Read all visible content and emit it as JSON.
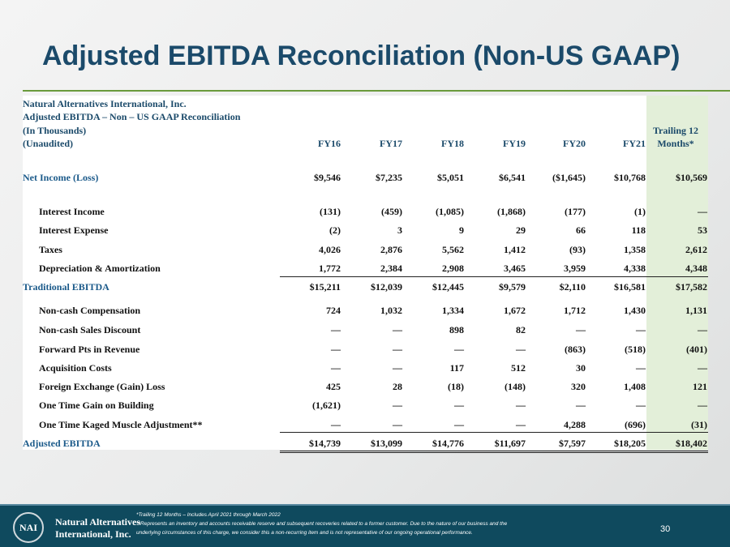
{
  "header": {
    "title": "Adjusted EBITDA Reconciliation (Non-US GAAP)"
  },
  "table": {
    "caption": [
      "Natural Alternatives International, Inc.",
      "Adjusted EBITDA – Non – US GAAP Reconciliation",
      "(In Thousands)",
      "(Unaudited)"
    ],
    "columns": [
      "FY16",
      "FY17",
      "FY18",
      "FY19",
      "FY20",
      "FY21",
      [
        "Trailing 12",
        "Months*"
      ]
    ],
    "rows": [
      {
        "label": "Net Income (Loss)",
        "values": [
          "$9,546",
          "$7,235",
          "$5,051",
          "$6,541",
          "($1,645)",
          "$10,768",
          "$10,569"
        ]
      },
      {
        "label": "Interest Income",
        "values": [
          "(131)",
          "(459)",
          "(1,085)",
          "(1,868)",
          "(177)",
          "(1)",
          "—"
        ]
      },
      {
        "label": "Interest Expense",
        "values": [
          "(2)",
          "3",
          "9",
          "29",
          "66",
          "118",
          "53"
        ]
      },
      {
        "label": "Taxes",
        "values": [
          "4,026",
          "2,876",
          "5,562",
          "1,412",
          "(93)",
          "1,358",
          "2,612"
        ]
      },
      {
        "label": "Depreciation & Amortization",
        "values": [
          "1,772",
          "2,384",
          "2,908",
          "3,465",
          "3,959",
          "4,338",
          "4,348"
        ]
      },
      {
        "label": "Traditional EBITDA",
        "values": [
          "$15,211",
          "$12,039",
          "$12,445",
          "$9,579",
          "$2,110",
          "$16,581",
          "$17,582"
        ]
      },
      {
        "label": "Non-cash Compensation",
        "values": [
          "724",
          "1,032",
          "1,334",
          "1,672",
          "1,712",
          "1,430",
          "1,131"
        ]
      },
      {
        "label": "Non-cash Sales Discount",
        "values": [
          "—",
          "—",
          "898",
          "82",
          "—",
          "—",
          "—"
        ]
      },
      {
        "label": "Forward Pts in Revenue",
        "values": [
          "—",
          "—",
          "—",
          "—",
          "(863)",
          "(518)",
          "(401)"
        ]
      },
      {
        "label": "Acquisition Costs",
        "values": [
          "—",
          "—",
          "117",
          "512",
          "30",
          "—",
          "—"
        ]
      },
      {
        "label": "Foreign Exchange (Gain) Loss",
        "values": [
          "425",
          "28",
          "(18)",
          "(148)",
          "320",
          "1,408",
          "121"
        ]
      },
      {
        "label": "One Time Gain on Building",
        "values": [
          "(1,621)",
          "—",
          "—",
          "—",
          "—",
          "—",
          "—"
        ]
      },
      {
        "label": "One Time Kaged Muscle Adjustment**",
        "values": [
          "—",
          "—",
          "—",
          "—",
          "4,288",
          "(696)",
          "(31)"
        ]
      },
      {
        "label": "Adjusted EBITDA",
        "values": [
          "$14,739",
          "$13,099",
          "$14,776",
          "$11,697",
          "$7,597",
          "$18,205",
          "$18,402"
        ]
      }
    ]
  },
  "footer": {
    "logo": "NAI",
    "company": [
      "Natural Alternatives",
      "International, Inc."
    ],
    "notes": [
      "*Trailing 12 Months – Includes April 2021 through March 2022",
      "**Represents an inventory and accounts receivable reserve and subsequent recoveries related to a former customer. Due to the nature of our business and the",
      "underlying circumstances of this charge, we consider this a non-recurring item and is not representative of our ongoing operational performance."
    ],
    "page": "30"
  }
}
